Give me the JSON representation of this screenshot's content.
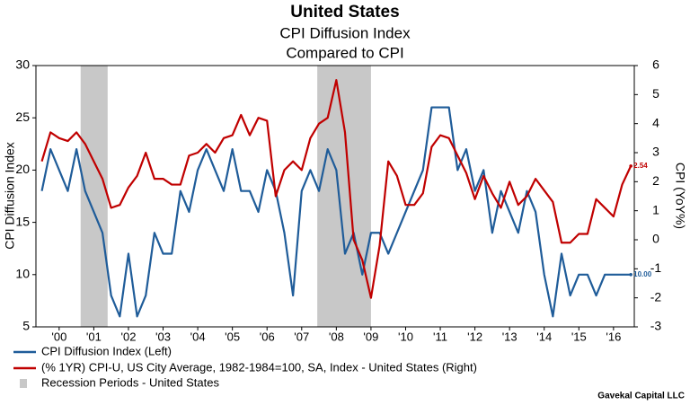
{
  "chart_data": {
    "type": "line",
    "title": "United States",
    "subtitle": "CPI Diffusion Index",
    "subtitle2": "Compared to CPI",
    "ylabel": "CPI Diffusion Index",
    "y2label": "CPI (YoY%)",
    "source": "Gavekal Capital LLC",
    "xlim": [
      1999.83,
      2017.1
    ],
    "xticks": [
      {
        "value": 2000.5,
        "label": "'00"
      },
      {
        "value": 2001.5,
        "label": "'01"
      },
      {
        "value": 2002.5,
        "label": "'02"
      },
      {
        "value": 2003.5,
        "label": "'03"
      },
      {
        "value": 2004.5,
        "label": "'04"
      },
      {
        "value": 2005.5,
        "label": "'05"
      },
      {
        "value": 2006.5,
        "label": "'06"
      },
      {
        "value": 2007.5,
        "label": "'07"
      },
      {
        "value": 2008.5,
        "label": "'08"
      },
      {
        "value": 2009.5,
        "label": "'09"
      },
      {
        "value": 2010.5,
        "label": "'10"
      },
      {
        "value": 2011.5,
        "label": "'11"
      },
      {
        "value": 2012.5,
        "label": "'12"
      },
      {
        "value": 2013.5,
        "label": "'13"
      },
      {
        "value": 2014.5,
        "label": "'14"
      },
      {
        "value": 2015.5,
        "label": "'15"
      },
      {
        "value": 2016.5,
        "label": "'16"
      }
    ],
    "ylim": [
      5,
      30
    ],
    "yticks": [
      5,
      10,
      15,
      20,
      25,
      30
    ],
    "y2lim": [
      -3,
      6
    ],
    "y2ticks": [
      -3,
      -2,
      -1,
      0,
      1,
      2,
      3,
      4,
      5,
      6
    ],
    "x": [
      2000.0,
      2000.25,
      2000.5,
      2000.75,
      2001.0,
      2001.25,
      2001.5,
      2001.75,
      2002.0,
      2002.25,
      2002.5,
      2002.75,
      2003.0,
      2003.25,
      2003.5,
      2003.75,
      2004.0,
      2004.25,
      2004.5,
      2004.75,
      2005.0,
      2005.25,
      2005.5,
      2005.75,
      2006.0,
      2006.25,
      2006.5,
      2006.75,
      2007.0,
      2007.25,
      2007.5,
      2007.75,
      2008.0,
      2008.25,
      2008.5,
      2008.75,
      2009.0,
      2009.25,
      2009.5,
      2009.75,
      2010.0,
      2010.25,
      2010.5,
      2010.75,
      2011.0,
      2011.25,
      2011.5,
      2011.75,
      2012.0,
      2012.25,
      2012.5,
      2012.75,
      2013.0,
      2013.25,
      2013.5,
      2013.75,
      2014.0,
      2014.25,
      2014.5,
      2014.75,
      2015.0,
      2015.25,
      2015.5,
      2015.75,
      2016.0,
      2016.25,
      2016.5,
      2016.75,
      2017.0
    ],
    "series": [
      {
        "name": "CPI Diffusion Index  (Left)",
        "color": "#1f5c99",
        "end_label": "10.00",
        "values": [
          18,
          22,
          20,
          18,
          22,
          18,
          16,
          14,
          8,
          6,
          12,
          6,
          8,
          14,
          12,
          12,
          18,
          16,
          20,
          22,
          20,
          18,
          22,
          18,
          18,
          16,
          20,
          18,
          14,
          8,
          18,
          20,
          18,
          22,
          20,
          12,
          14,
          10,
          14,
          14,
          12,
          14,
          16,
          18,
          20,
          26,
          26,
          26,
          20,
          22,
          18,
          20,
          14,
          18,
          16,
          14,
          18,
          16,
          10,
          6,
          12,
          8,
          10,
          10,
          8,
          10,
          10,
          10,
          10
        ]
      },
      {
        "name": "(% 1YR) CPI-U, US City Average, 1982-1984=100, SA, Index - United States  (Right)",
        "color": "#c00000",
        "axis": "y2",
        "end_label": "2.54",
        "values": [
          2.7,
          3.7,
          3.5,
          3.4,
          3.7,
          3.3,
          2.7,
          2.1,
          1.1,
          1.2,
          1.8,
          2.2,
          3.0,
          2.1,
          2.1,
          1.9,
          1.9,
          2.9,
          3.0,
          3.3,
          3.0,
          3.5,
          3.6,
          4.3,
          3.6,
          4.2,
          4.1,
          1.5,
          2.4,
          2.7,
          2.4,
          3.5,
          4.0,
          4.2,
          5.5,
          3.7,
          0.0,
          -0.7,
          -2.0,
          -0.2,
          2.7,
          2.2,
          1.2,
          1.2,
          1.6,
          3.2,
          3.6,
          3.5,
          2.9,
          2.3,
          1.4,
          2.2,
          1.6,
          1.1,
          2.0,
          1.2,
          1.5,
          2.1,
          1.7,
          1.3,
          -0.1,
          -0.1,
          0.2,
          0.2,
          1.4,
          1.1,
          0.8,
          1.9,
          2.54
        ]
      }
    ],
    "recessions": {
      "name": "Recession Periods - United States",
      "color": "#c8c8c8",
      "periods": [
        [
          2001.12,
          2001.9
        ],
        [
          2007.95,
          2009.5
        ]
      ]
    }
  }
}
